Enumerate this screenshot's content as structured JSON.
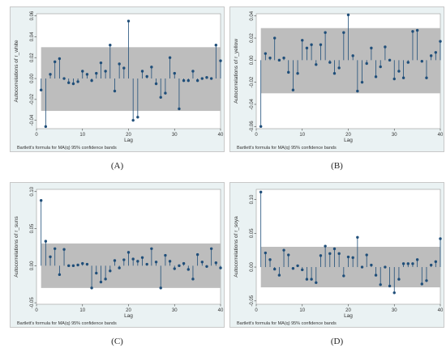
{
  "figure": {
    "bands_color": "#bdbdbd",
    "marker_color": "#1f4e79",
    "background_color": "#eaf2f3"
  },
  "chart_data": [
    {
      "type": "scatter",
      "label": "(A)",
      "xlabel": "Lag",
      "ylabel": "Autocorrelations of r_white",
      "note": "Bartlett's formula for MA(q) 95% confidence bands",
      "xlim": [
        0,
        40
      ],
      "ylim": [
        -0.048,
        0.062
      ],
      "xticks": [
        0,
        10,
        20,
        30,
        40
      ],
      "yticks": [
        -0.04,
        -0.02,
        0.0,
        0.02,
        0.04,
        0.06
      ],
      "ytick_labels": [
        "-0.04",
        "-0.02",
        "0.00",
        "0.02",
        "0.04",
        "0.06"
      ],
      "band_upper": 0.03,
      "band_lower": -0.031,
      "x": [
        1,
        2,
        3,
        4,
        5,
        6,
        7,
        8,
        9,
        10,
        11,
        12,
        13,
        14,
        15,
        16,
        17,
        18,
        19,
        20,
        21,
        22,
        23,
        24,
        25,
        26,
        27,
        28,
        29,
        30,
        31,
        32,
        33,
        34,
        35,
        36,
        37,
        38,
        39,
        40
      ],
      "values": [
        -0.011,
        -0.046,
        0.004,
        0.016,
        0.019,
        0.0,
        -0.004,
        -0.005,
        -0.003,
        0.007,
        0.004,
        -0.002,
        0.005,
        0.015,
        0.007,
        0.032,
        -0.012,
        0.014,
        0.01,
        0.055,
        -0.04,
        -0.037,
        0.007,
        0.002,
        0.011,
        -0.005,
        -0.018,
        -0.014,
        0.02,
        0.005,
        -0.029,
        -0.002,
        -0.002,
        0.007,
        -0.002,
        0.0,
        0.001,
        0.0,
        0.032,
        0.017
      ]
    },
    {
      "type": "scatter",
      "label": "(B)",
      "xlabel": "Lag",
      "ylabel": "Autocorrelations of r_yellow",
      "note": "Bartlett's formula for MA(q) 95% confidence bands",
      "xlim": [
        0,
        40
      ],
      "ylim": [
        -0.062,
        0.042
      ],
      "xticks": [
        0,
        10,
        20,
        30,
        40
      ],
      "yticks": [
        -0.06,
        -0.04,
        -0.02,
        0.0,
        0.02,
        0.04
      ],
      "ytick_labels": [
        "-0.06",
        "-0.04",
        "-0.02",
        "0.00",
        "0.02",
        "0.04"
      ],
      "band_upper": 0.029,
      "band_lower": -0.03,
      "x": [
        1,
        2,
        3,
        4,
        5,
        6,
        7,
        8,
        9,
        10,
        11,
        12,
        13,
        14,
        15,
        16,
        17,
        18,
        19,
        20,
        21,
        22,
        23,
        24,
        25,
        26,
        27,
        28,
        29,
        30,
        31,
        32,
        33,
        34,
        35,
        36,
        37,
        38,
        39,
        40
      ],
      "values": [
        -0.06,
        0.006,
        0.002,
        0.02,
        0.0,
        0.002,
        -0.011,
        -0.027,
        -0.012,
        0.018,
        0.011,
        0.014,
        -0.004,
        0.014,
        0.025,
        -0.002,
        -0.012,
        -0.007,
        0.025,
        0.041,
        0.004,
        -0.028,
        -0.02,
        -0.003,
        0.011,
        -0.015,
        -0.006,
        0.012,
        0.0,
        -0.017,
        -0.01,
        -0.016,
        -0.002,
        0.026,
        0.027,
        -0.001,
        -0.016,
        0.004,
        0.007,
        0.017
      ]
    },
    {
      "type": "scatter",
      "label": "(C)",
      "xlabel": "Lag",
      "ylabel": "Autocorrelations of r_suns",
      "note": "Bartlett's formula for MA(q) 95% confidence bands",
      "xlim": [
        0,
        40
      ],
      "ylim": [
        -0.052,
        0.103
      ],
      "xticks": [
        0,
        10,
        20,
        30,
        40
      ],
      "yticks": [
        -0.05,
        0.0,
        0.05,
        0.1
      ],
      "ytick_labels": [
        "-0.05",
        "0.00",
        "0.05",
        "0.10"
      ],
      "band_upper": 0.03,
      "band_lower": -0.03,
      "x": [
        1,
        2,
        3,
        4,
        5,
        6,
        7,
        8,
        9,
        10,
        11,
        12,
        13,
        14,
        15,
        16,
        17,
        18,
        19,
        20,
        21,
        22,
        23,
        24,
        25,
        26,
        27,
        28,
        29,
        30,
        31,
        32,
        33,
        34,
        35,
        36,
        37,
        38,
        39,
        40
      ],
      "values": [
        0.088,
        0.033,
        0.012,
        0.023,
        -0.012,
        0.022,
        0.0,
        0.0,
        0.001,
        0.003,
        0.002,
        -0.03,
        -0.01,
        -0.022,
        -0.018,
        -0.007,
        0.007,
        -0.003,
        0.008,
        0.018,
        0.009,
        0.006,
        0.011,
        0.002,
        0.023,
        0.005,
        -0.03,
        0.014,
        0.006,
        -0.004,
        0.0,
        0.003,
        -0.005,
        -0.018,
        0.015,
        0.005,
        -0.001,
        0.023,
        0.004,
        -0.003
      ]
    },
    {
      "type": "scatter",
      "label": "(D)",
      "xlabel": "Lag",
      "ylabel": "Autocorrelations of r_soya",
      "note": "Bartlett's formula for MA(q) 95% confidence bands",
      "xlim": [
        0,
        40
      ],
      "ylim": [
        -0.055,
        0.115
      ],
      "xticks": [
        0,
        10,
        20,
        30,
        40
      ],
      "yticks": [
        -0.05,
        0.0,
        0.05,
        0.1
      ],
      "ytick_labels": [
        "-0.05",
        "0.00",
        "0.05",
        "0.10"
      ],
      "band_upper": 0.03,
      "band_lower": -0.03,
      "x": [
        1,
        2,
        3,
        4,
        5,
        6,
        7,
        8,
        9,
        10,
        11,
        12,
        13,
        14,
        15,
        16,
        17,
        18,
        19,
        20,
        21,
        22,
        23,
        24,
        25,
        26,
        27,
        28,
        29,
        30,
        31,
        32,
        33,
        34,
        35,
        36,
        37,
        38,
        39,
        40
      ],
      "values": [
        0.111,
        0.021,
        0.011,
        -0.003,
        -0.012,
        0.025,
        0.018,
        -0.002,
        0.002,
        -0.004,
        -0.018,
        -0.018,
        -0.023,
        0.017,
        0.031,
        0.02,
        0.027,
        0.02,
        -0.013,
        0.015,
        0.014,
        0.044,
        0.0,
        0.018,
        0.003,
        -0.012,
        -0.026,
        0.0,
        -0.028,
        -0.038,
        -0.018,
        0.005,
        0.005,
        0.005,
        0.011,
        -0.025,
        -0.02,
        0.003,
        0.008,
        0.042
      ]
    }
  ]
}
